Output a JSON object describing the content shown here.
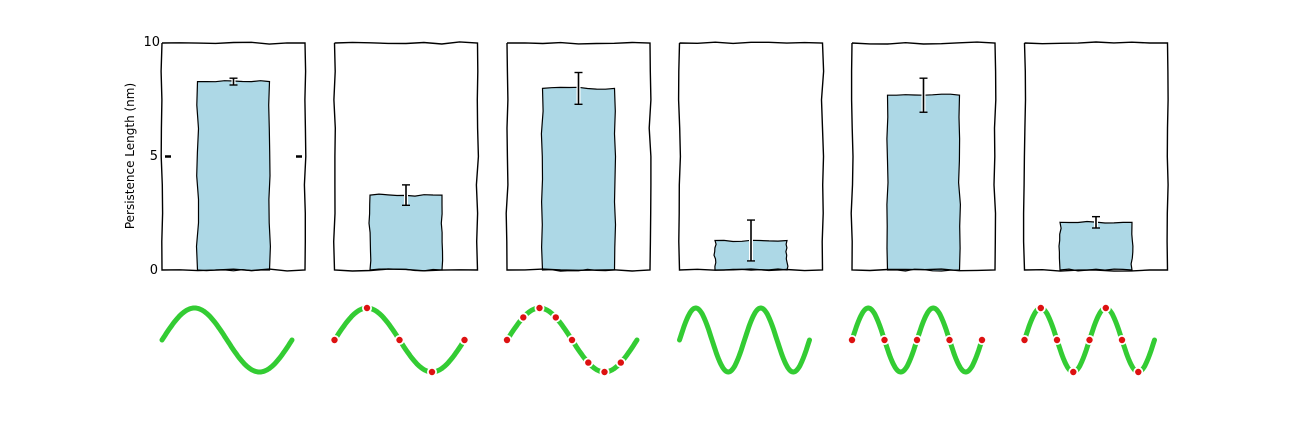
{
  "chart_data": {
    "type": "bar",
    "title": "",
    "ylabel": "Persistence Length (nm)",
    "ylim": [
      0,
      10
    ],
    "yticks": [
      "0",
      "5",
      "10"
    ],
    "grid": false,
    "bar_color": "#add8e6",
    "panels": [
      {
        "value": 8.3,
        "error": 0.15,
        "wave_periods": 1.0,
        "dots": 0
      },
      {
        "value": 3.3,
        "error": 0.45,
        "wave_periods": 1.0,
        "dots": 4
      },
      {
        "value": 8.0,
        "error": 0.7,
        "wave_periods": 1.0,
        "dots": 8
      },
      {
        "value": 1.3,
        "error": 0.9,
        "wave_periods": 2.0,
        "dots": 0
      },
      {
        "value": 7.7,
        "error": 0.75,
        "wave_periods": 2.0,
        "dots": 4
      },
      {
        "value": 2.1,
        "error": 0.25,
        "wave_periods": 2.0,
        "dots": 8
      }
    ],
    "wave_color": "#33cc33",
    "dot_color": "#dd1111"
  }
}
